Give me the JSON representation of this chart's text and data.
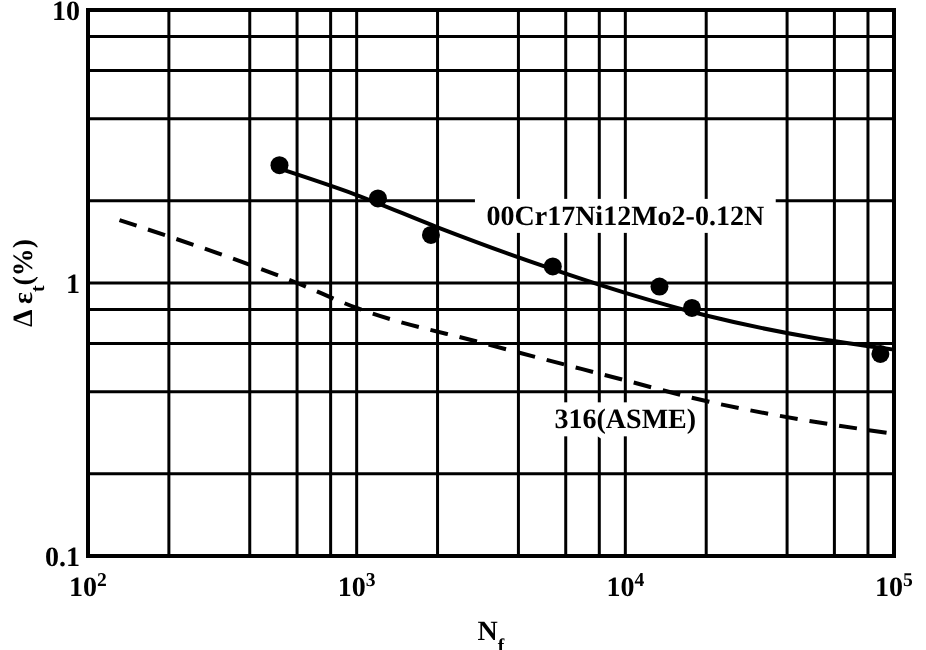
{
  "chart_data": {
    "type": "line",
    "log": "xy",
    "grid": true,
    "xlabel": "N$_{f}$",
    "ylabel": "Δ ε$_{t}$(%)",
    "xlim": [
      100,
      100000
    ],
    "ylim": [
      0.1,
      10
    ],
    "xticks": [
      {
        "value": 100,
        "label": "10$^{2}$"
      },
      {
        "value": 200,
        "label": null
      },
      {
        "value": 400,
        "label": null
      },
      {
        "value": 600,
        "label": null
      },
      {
        "value": 800,
        "label": null
      },
      {
        "value": 1000,
        "label": "10$^{3}$"
      },
      {
        "value": 2000,
        "label": null
      },
      {
        "value": 4000,
        "label": null
      },
      {
        "value": 6000,
        "label": null
      },
      {
        "value": 8000,
        "label": null
      },
      {
        "value": 10000,
        "label": "10$^{4}$"
      },
      {
        "value": 20000,
        "label": null
      },
      {
        "value": 40000,
        "label": null
      },
      {
        "value": 60000,
        "label": null
      },
      {
        "value": 80000,
        "label": null
      },
      {
        "value": 100000,
        "label": "10$^{5}$"
      }
    ],
    "yticks": [
      0.1,
      {
        "value": 0.2,
        "label": null
      },
      {
        "value": 0.4,
        "label": null
      },
      {
        "value": 0.6,
        "label": null
      },
      {
        "value": 0.8,
        "label": null
      },
      1,
      {
        "value": 2,
        "label": null
      },
      {
        "value": 4,
        "label": null
      },
      {
        "value": 6,
        "label": null
      },
      {
        "value": 8,
        "label": null
      },
      10
    ],
    "series": [
      {
        "type": "scatter",
        "marker": "circle",
        "color": "#000000",
        "x": [
          516,
          1200,
          1890,
          5370,
          13400,
          17700,
          89000
        ],
        "values": [
          2.7,
          2.04,
          1.5,
          1.15,
          0.97,
          0.81,
          0.55
        ]
      },
      {
        "name": "00Cr17Ni12Mo2-0.12N",
        "color": "#000000",
        "line_style": "solid",
        "x": [
          500,
          1000,
          2000,
          5000,
          10000,
          20000,
          50000,
          100000
        ],
        "values": [
          2.65,
          2.1,
          1.6,
          1.15,
          0.92,
          0.76,
          0.63,
          0.57
        ]
      },
      {
        "name": "316(ASME)",
        "color": "#000000",
        "line_style": "dashed",
        "x": [
          131,
          600,
          1000,
          3000,
          10000,
          17700,
          100000
        ],
        "values": [
          1.7,
          1.0,
          0.81,
          0.6,
          0.44,
          0.38,
          0.28
        ]
      }
    ]
  }
}
